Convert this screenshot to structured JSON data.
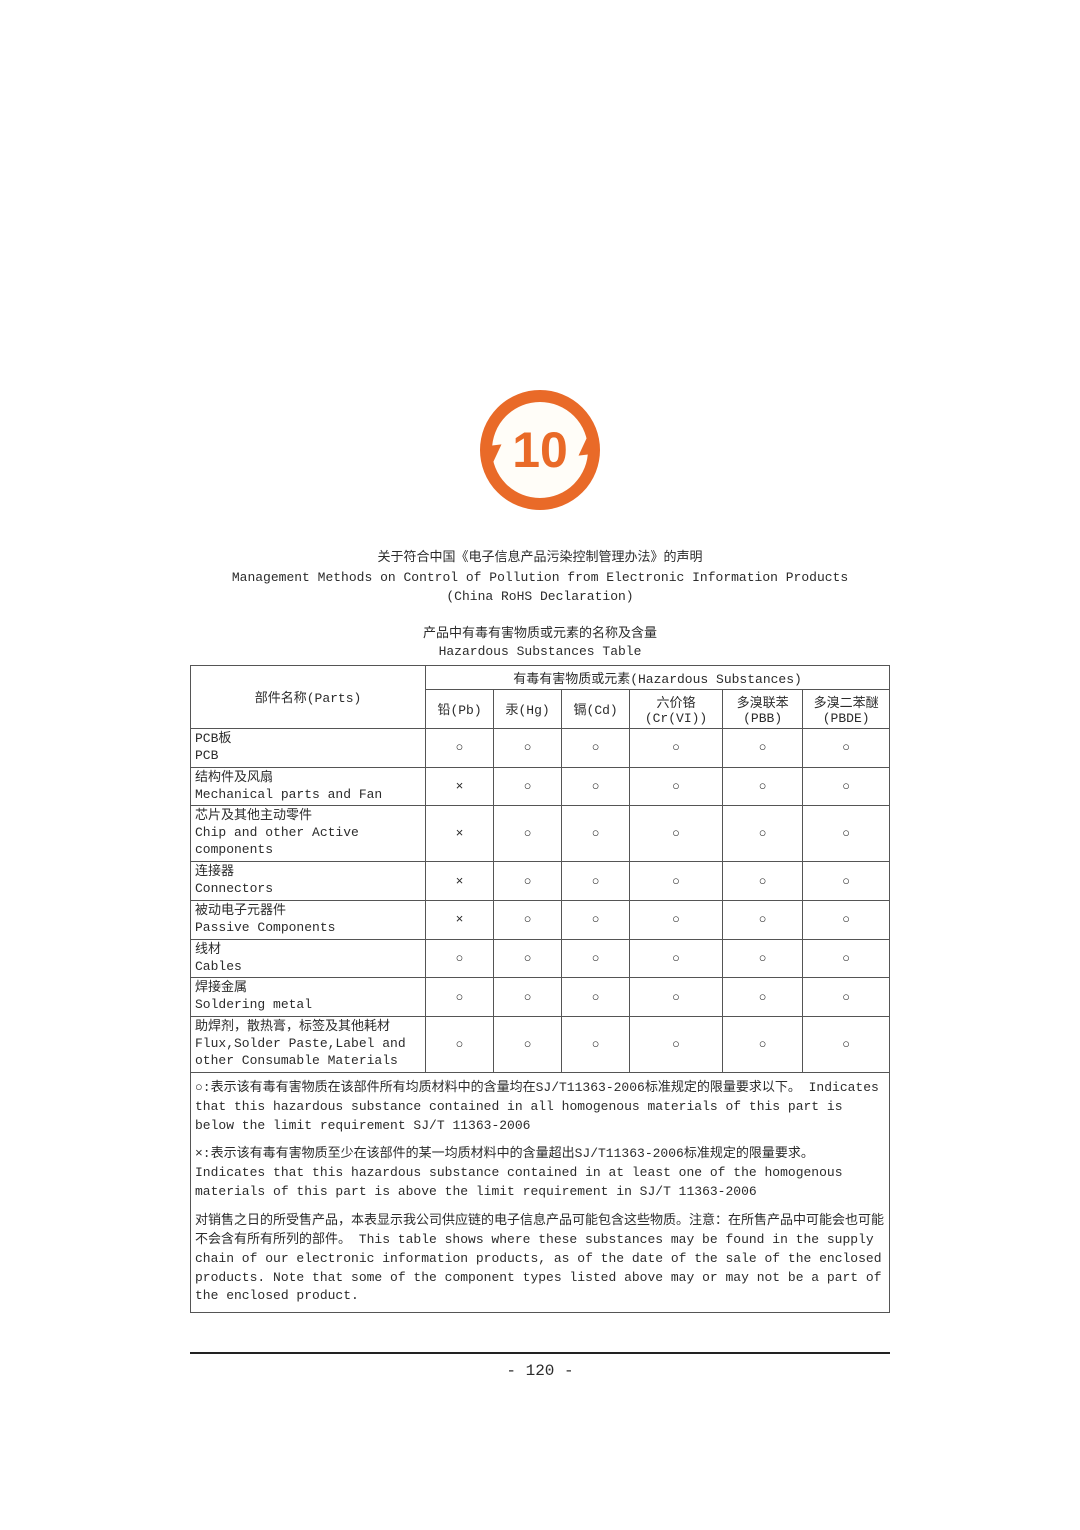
{
  "logo": {
    "number": "10",
    "ring_color": "#e96a28"
  },
  "intro": {
    "line1": "关于符合中国《电子信息产品污染控制管理办法》的声明",
    "line2": "Management Methods on Control of Pollution from Electronic Information Products",
    "line3": "(China RoHS Declaration)"
  },
  "subtitle": {
    "line1": "产品中有毒有害物质或元素的名称及含量",
    "line2": "Hazardous Substances Table"
  },
  "headers": {
    "parts": "部件名称(Parts)",
    "group": "有毒有害物质或元素(Hazardous Substances)",
    "pb": "铅(Pb)",
    "hg": "汞(Hg)",
    "cd": "镉(Cd)",
    "cr_l1": "六价铬",
    "cr_l2": "(Cr(VI))",
    "pbb_l1": "多溴联苯",
    "pbb_l2": "(PBB)",
    "pbde_l1": "多溴二苯醚",
    "pbde_l2": "(PBDE)"
  },
  "mark": {
    "O": "○",
    "X": "×"
  },
  "rows": [
    {
      "cn": "PCB板",
      "en": "PCB",
      "v": [
        "O",
        "O",
        "O",
        "O",
        "O",
        "O"
      ]
    },
    {
      "cn": "结构件及风扇",
      "en": "Mechanical parts and Fan",
      "v": [
        "X",
        "O",
        "O",
        "O",
        "O",
        "O"
      ]
    },
    {
      "cn": "芯片及其他主动零件",
      "en": "Chip and other Active components",
      "v": [
        "X",
        "O",
        "O",
        "O",
        "O",
        "O"
      ]
    },
    {
      "cn": "连接器",
      "en": "Connectors",
      "v": [
        "X",
        "O",
        "O",
        "O",
        "O",
        "O"
      ]
    },
    {
      "cn": "被动电子元器件",
      "en": "Passive Components",
      "v": [
        "X",
        "O",
        "O",
        "O",
        "O",
        "O"
      ]
    },
    {
      "cn": "线材",
      "en": "Cables",
      "v": [
        "O",
        "O",
        "O",
        "O",
        "O",
        "O"
      ]
    },
    {
      "cn": "焊接金属",
      "en": "Soldering metal",
      "v": [
        "O",
        "O",
        "O",
        "O",
        "O",
        "O"
      ]
    },
    {
      "cn": "助焊剂，散热膏，标签及其他耗材",
      "en": "Flux,Solder Paste,Label and other Consumable Materials",
      "v": [
        "O",
        "O",
        "O",
        "O",
        "O",
        "O"
      ]
    }
  ],
  "notes": {
    "p1": "○:表示该有毒有害物质在该部件所有均质材料中的含量均在SJ/T11363-2006标准规定的限量要求以下。\nIndicates that this hazardous substance contained in all homogenous materials of this part is below the limit requirement SJ/T 11363-2006",
    "p2": "×:表示该有毒有害物质至少在该部件的某一均质材料中的含量超出SJ/T11363-2006标准规定的限量要求。\nIndicates that this hazardous substance contained in at least one of the homogenous materials of this part is above the limit requirement in SJ/T 11363-2006",
    "p3": "对销售之日的所受售产品，本表显示我公司供应链的电子信息产品可能包含这些物质。注意：在所售产品中可能会也可能不会含有所有所列的部件。\nThis table shows where these substances may be found in the supply chain of our electronic information products, as of the date of the sale of the enclosed products. Note that some of the component types listed above may or may not be a part of the enclosed product."
  },
  "page_number": "- 120 -"
}
